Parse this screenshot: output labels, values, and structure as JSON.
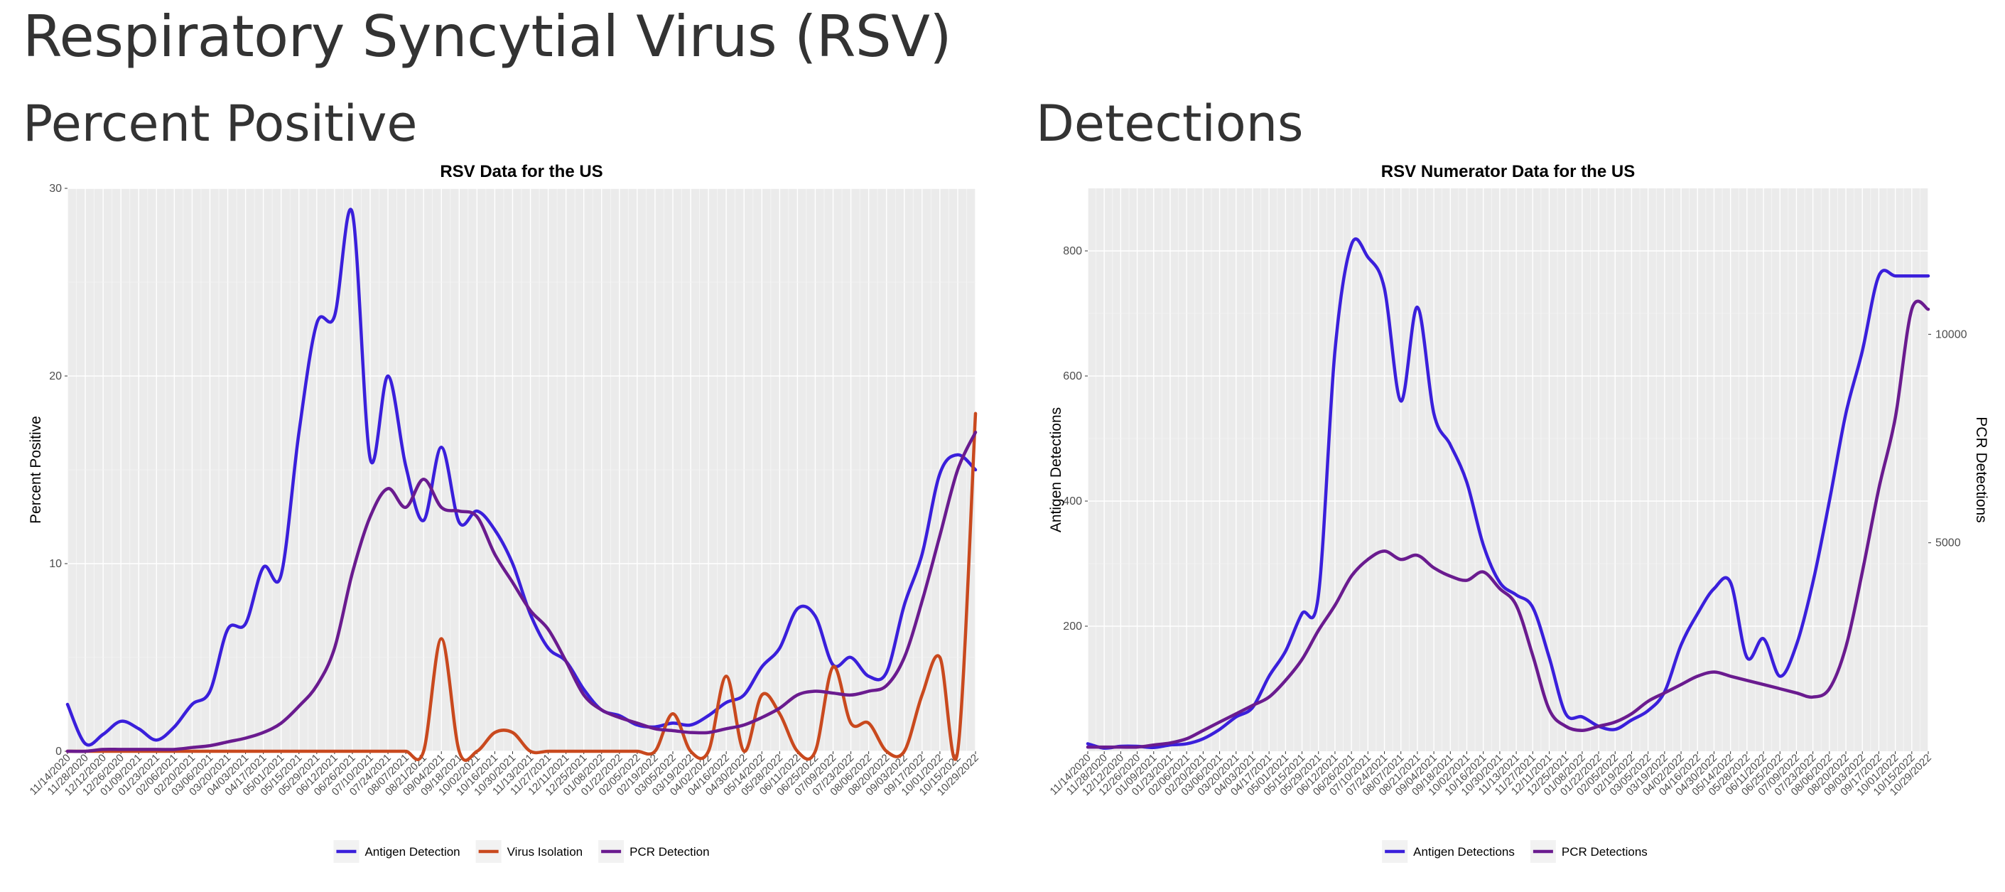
{
  "page": {
    "title": "Respiratory Syncytial Virus (RSV)",
    "left_section": "Percent Positive",
    "right_section": "Detections"
  },
  "x_dates": [
    "11/14/2020",
    "11/28/2020",
    "12/12/2020",
    "12/26/2020",
    "01/09/2021",
    "01/23/2021",
    "02/06/2021",
    "02/20/2021",
    "03/06/2021",
    "03/20/2021",
    "04/03/2021",
    "04/17/2021",
    "05/01/2021",
    "05/15/2021",
    "05/29/2021",
    "06/12/2021",
    "06/26/2021",
    "07/10/2021",
    "07/24/2021",
    "08/07/2021",
    "08/21/2021",
    "09/04/2021",
    "09/18/2021",
    "10/02/2021",
    "10/16/2021",
    "10/30/2021",
    "11/13/2021",
    "11/27/2021",
    "12/11/2021",
    "12/25/2021",
    "01/08/2022",
    "01/22/2022",
    "02/05/2022",
    "02/19/2022",
    "03/05/2022",
    "03/19/2022",
    "04/02/2022",
    "04/16/2022",
    "04/30/2022",
    "05/14/2022",
    "05/28/2022",
    "06/11/2022",
    "06/25/2022",
    "07/09/2022",
    "07/23/2022",
    "08/06/2022",
    "08/20/2022",
    "09/03/2022",
    "09/17/2022",
    "10/01/2022",
    "10/15/2022",
    "10/29/2022"
  ],
  "chart_data": [
    {
      "type": "line",
      "title": "RSV Data for the US",
      "ylabel": "Percent Positive",
      "xlabel": "",
      "ylim": [
        0,
        30
      ],
      "yticks": [
        0,
        10,
        20,
        30
      ],
      "grid": true,
      "legend_position": "bottom",
      "series": [
        {
          "name": "Antigen Detection",
          "color": "#3a1fdb",
          "values": [
            2.5,
            0.4,
            0.9,
            1.6,
            1.2,
            0.6,
            1.3,
            2.5,
            3.2,
            6.5,
            6.8,
            9.8,
            9.4,
            17,
            22.8,
            23.2,
            28.7,
            15.6,
            20,
            15.2,
            12.3,
            16.2,
            12.2,
            12.8,
            11.8,
            10,
            7.3,
            5.5,
            4.8,
            3.3,
            2.2,
            1.9,
            1.4,
            1.3,
            1.5,
            1.4,
            1.9,
            2.6,
            3,
            4.5,
            5.5,
            7.6,
            7.2,
            4.6,
            5,
            4,
            4.2,
            7.8,
            10.5,
            14.8,
            15.8,
            15
          ]
        },
        {
          "name": "Virus Isolation",
          "color": "#c9491e",
          "values": [
            0,
            0,
            0,
            0,
            0,
            0,
            0,
            0,
            0,
            0,
            0,
            0,
            0,
            0,
            0,
            0,
            0,
            0,
            0,
            0,
            0,
            6,
            0,
            0,
            1,
            1,
            0,
            0,
            0,
            0,
            0,
            0,
            0,
            0,
            2,
            0,
            0,
            4,
            0,
            3,
            2,
            0,
            0,
            4.5,
            1.5,
            1.5,
            0,
            0,
            3,
            5,
            0,
            18
          ]
        },
        {
          "name": "PCR Detection",
          "color": "#6a1b8f",
          "values": [
            0,
            0,
            0.1,
            0.1,
            0.1,
            0.1,
            0.1,
            0.2,
            0.3,
            0.5,
            0.7,
            1,
            1.5,
            2.4,
            3.5,
            5.5,
            9.5,
            12.5,
            14,
            13,
            14.5,
            13,
            12.8,
            12.5,
            10.5,
            9,
            7.5,
            6.5,
            4.8,
            3,
            2.2,
            1.8,
            1.5,
            1.2,
            1.1,
            1,
            1,
            1.2,
            1.4,
            1.8,
            2.3,
            3,
            3.2,
            3.1,
            3,
            3.2,
            3.5,
            5,
            8,
            11.5,
            15,
            17
          ]
        }
      ]
    },
    {
      "type": "line",
      "title": "RSV Numerator Data for the US",
      "ylabel": "Antigen Detections",
      "y2label": "PCR Detections",
      "xlabel": "",
      "ylim": [
        0,
        900
      ],
      "yticks": [
        200,
        400,
        600,
        800
      ],
      "y2lim": [
        0,
        13500
      ],
      "y2ticks": [
        5000,
        10000
      ],
      "grid": true,
      "legend_position": "bottom",
      "series": [
        {
          "name": "Antigen Detections",
          "axis": "left",
          "color": "#3a1fdb",
          "values": [
            12,
            5,
            8,
            8,
            6,
            10,
            12,
            20,
            35,
            55,
            70,
            120,
            160,
            220,
            250,
            640,
            810,
            790,
            740,
            560,
            710,
            540,
            490,
            430,
            330,
            270,
            250,
            230,
            150,
            60,
            55,
            40,
            35,
            50,
            65,
            95,
            170,
            220,
            260,
            270,
            150,
            180,
            120,
            170,
            270,
            400,
            540,
            640,
            760,
            760,
            760,
            760
          ]
        },
        {
          "name": "PCR Detections",
          "axis": "right",
          "color": "#6a1b8f",
          "values": [
            100,
            100,
            100,
            100,
            150,
            200,
            300,
            500,
            700,
            900,
            1100,
            1300,
            1700,
            2200,
            2900,
            3500,
            4200,
            4600,
            4800,
            4600,
            4700,
            4400,
            4200,
            4100,
            4300,
            3900,
            3500,
            2300,
            1000,
            600,
            500,
            600,
            700,
            900,
            1200,
            1400,
            1600,
            1800,
            1900,
            1800,
            1700,
            1600,
            1500,
            1400,
            1300,
            1500,
            2500,
            4300,
            6300,
            8000,
            10600,
            10600
          ]
        }
      ]
    }
  ]
}
